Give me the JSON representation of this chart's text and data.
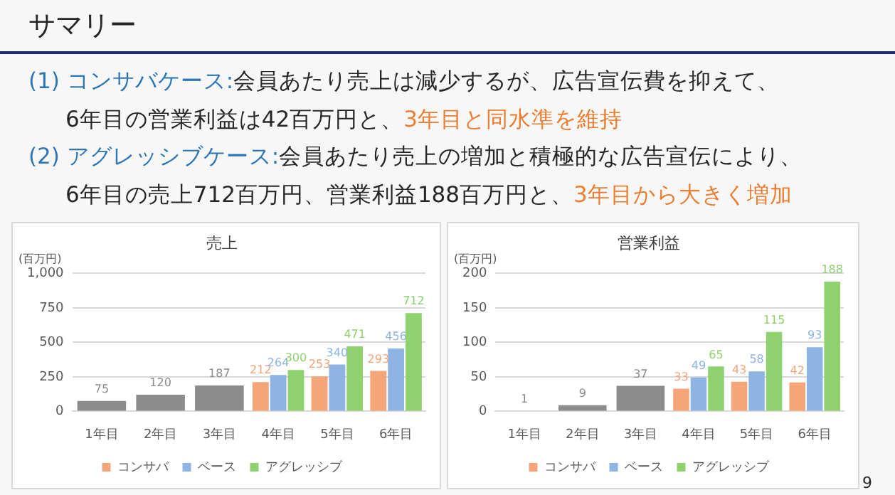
{
  "chart_data": [
    {
      "type": "bar",
      "title": "売上",
      "ylabel": "(百万円)",
      "annotations": [
        "サマリー",
        "(1) コンサバケース:",
        "会員あたり売上は減少するが、広告宣伝費を抑えて、",
        "6年目の営業利益は42百万円と、",
        "3年目と同水準を維持",
        "(2) アグレッシブケース:",
        "会員あたり売上の増加と積極的な広告宣伝により、",
        "6年目の売上712百万円、営業利益188百万円と、",
        "3年目から大きく増加"
      ],
      "categories": [
        "1年目",
        "2年目",
        "3年目",
        "4年目",
        "5年目",
        "6年目"
      ],
      "series": [
        {
          "color": "#8c8c8c",
          "values": [
            75,
            120,
            187,
            null,
            null,
            null
          ]
        },
        {
          "name": "コンサバ",
          "color": "#f4a57a",
          "values": [
            null,
            null,
            null,
            212,
            253,
            293
          ]
        },
        {
          "name": "ベース",
          "color": "#8db4e2",
          "values": [
            null,
            null,
            null,
            264,
            340,
            456
          ]
        },
        {
          "name": "アグレッシブ",
          "color": "#8fd16e",
          "values": [
            null,
            null,
            null,
            300,
            471,
            712
          ]
        }
      ],
      "ylim": [
        0,
        1000
      ],
      "yticks": [
        0,
        250,
        500,
        750,
        {
          "value": 1000,
          "label": "1,000"
        }
      ],
      "grid": "y",
      "legend": "bottom",
      "data_labels": true
    },
    {
      "type": "bar",
      "title": "営業利益",
      "ylabel": "(百万円)",
      "annotations": [
        "9"
      ],
      "categories": [
        "1年目",
        "2年目",
        "3年目",
        "4年目",
        "5年目",
        "6年目"
      ],
      "series": [
        {
          "color": "#8c8c8c",
          "values": [
            1,
            9,
            37,
            null,
            null,
            null
          ]
        },
        {
          "name": "コンサバ",
          "color": "#f4a57a",
          "values": [
            null,
            null,
            null,
            33,
            43,
            42
          ]
        },
        {
          "name": "ベース",
          "color": "#8db4e2",
          "values": [
            null,
            null,
            null,
            49,
            58,
            93
          ]
        },
        {
          "name": "アグレッシブ",
          "color": "#8fd16e",
          "values": [
            null,
            null,
            null,
            65,
            115,
            188
          ]
        }
      ],
      "ylim": [
        0,
        200
      ],
      "yticks": [
        0,
        50,
        100,
        150,
        200
      ],
      "grid": "y",
      "legend": "bottom",
      "data_labels": true
    }
  ]
}
